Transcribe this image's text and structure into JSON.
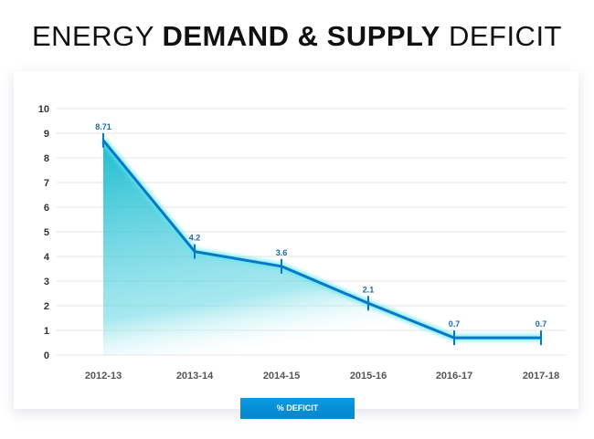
{
  "title": {
    "normal_1": "ENERGY ",
    "bold": "DEMAND & SUPPLY",
    "normal_2": " DEFICIT"
  },
  "chart_data": {
    "type": "area",
    "title": "ENERGY DEMAND & SUPPLY DEFICIT",
    "categories": [
      "2012-13",
      "2013-14",
      "2014-15",
      "2015-16",
      "2016-17",
      "2017-18"
    ],
    "series": [
      {
        "name": "% DEFICIT",
        "values": [
          8.71,
          4.2,
          3.6,
          2.1,
          0.7,
          0.7
        ],
        "labels": [
          "8.71",
          "4.2",
          "3.6",
          "2.1",
          "0.7",
          "0.7"
        ]
      }
    ],
    "yticks": [
      "0",
      "1",
      "2",
      "3",
      "4",
      "5",
      "6",
      "7",
      "8",
      "9",
      "10"
    ],
    "ylim": [
      0,
      10
    ],
    "grid": true,
    "legend": "bottom-center",
    "colors": {
      "line": "#0a78c2",
      "fill": "#1fc0d0",
      "label": "#1a6aa8"
    }
  }
}
